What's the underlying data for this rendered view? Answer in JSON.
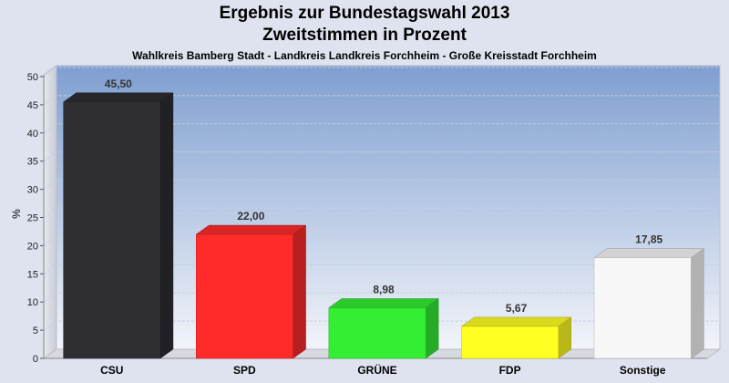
{
  "header": {
    "title_line1": "Ergebnis zur Bundestagswahl 2013",
    "title_line2": "Zweitstimmen in Prozent",
    "subtitle": "Wahlkreis Bamberg Stadt - Landkreis Landkreis Forchheim - Große Kreisstadt Forchheim"
  },
  "chart_data": {
    "type": "bar",
    "title": "Ergebnis zur Bundestagswahl 2013 Zweitstimmen in Prozent",
    "subtitle": "Wahlkreis Bamberg Stadt - Landkreis Landkreis Forchheim - Große Kreisstadt Forchheim",
    "categories": [
      "CSU",
      "SPD",
      "GRÜNE",
      "FDP",
      "Sonstige"
    ],
    "values": [
      45.5,
      22.0,
      8.98,
      5.67,
      17.85
    ],
    "value_labels": [
      "45,50",
      "22,00",
      "8,98",
      "5,67",
      "17,85"
    ],
    "colors": [
      "#2e2e33",
      "#ff2b2b",
      "#33ee33",
      "#ffff22",
      "#f7f7f7"
    ],
    "xlabel": "",
    "ylabel": "%",
    "ylim": [
      0,
      50
    ],
    "yticks": [
      0,
      5,
      10,
      15,
      20,
      25,
      30,
      35,
      40,
      45,
      50
    ],
    "grid": true,
    "legend": "none",
    "style": "3d-bars"
  }
}
